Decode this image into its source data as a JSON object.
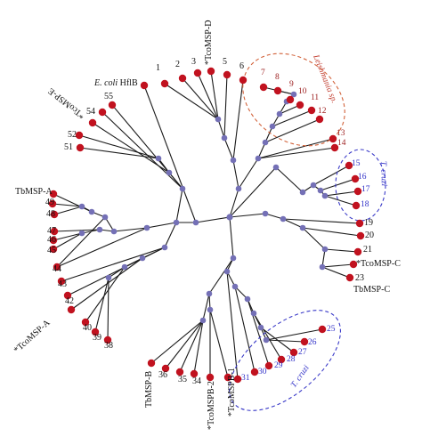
{
  "colors": {
    "branch": "#1a1a1a",
    "leaf_node": "#c1121f",
    "internal_node": "#7470b6",
    "leishmania_outline": "#d2623a",
    "cruzi_outline": "#3a3ac8",
    "leaf_label_red": "#9b1c1c",
    "leaf_label_blue": "#3232c8"
  },
  "leaves": {
    "1": "1",
    "2": "2",
    "3": "3",
    "5": "5",
    "6": "6",
    "7": "7",
    "8": "8",
    "9": "9",
    "10": "10",
    "11": "11",
    "12": "12",
    "13": "13",
    "14": "14",
    "15": "15",
    "16": "16",
    "17": "17",
    "18": "18",
    "19": "19",
    "20": "20",
    "21": "21",
    "23": "23",
    "25": "25",
    "26": "26",
    "27": "27",
    "28": "28",
    "29": "29",
    "30": "30",
    "31": "31",
    "34": "34",
    "35": "35",
    "36": "36",
    "38": "38",
    "39": "39",
    "40": "40",
    "42": "42",
    "43": "43",
    "44": "44",
    "45": "45",
    "46": "46",
    "47": "47",
    "48": "48",
    "49": "49",
    "51": "51",
    "52": "52",
    "54": "54",
    "55": "55"
  },
  "named_leaves": {
    "tcomsp_d": "*TcoMSP-D",
    "ecoli": "E. coli HflB",
    "tcomsp_e": "*TcoMSP-E",
    "tbmsp_a": "TbMSP-A",
    "tcomsp_a": "*TcoMSP-A",
    "tbmsp_b": "TbMSP-B",
    "tcomspb_2": "*TcoMSPB-2",
    "tcomspb_1": "*TcoMSPB-1",
    "tcomsp_c": "*TcoMSP-C",
    "tbmsp_c": "TbMSP-C"
  },
  "clades": {
    "leishmania": "Leishmania sp.",
    "cruzi_upper": "T. cruzi",
    "cruzi_lower": "T. cruzi"
  }
}
